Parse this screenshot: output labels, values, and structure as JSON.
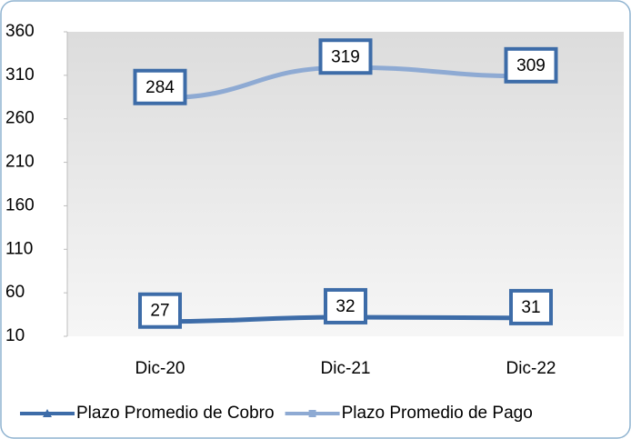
{
  "chart_data": {
    "type": "line",
    "categories": [
      "Dic-20",
      "Dic-21",
      "Dic-22"
    ],
    "series": [
      {
        "name": "Plazo Promedio de Cobro",
        "color": "#3d6ca8",
        "marker": "triangle",
        "values": [
          27,
          32,
          31
        ]
      },
      {
        "name": "Plazo Promedio de Pago",
        "color": "#8eaad3",
        "marker": "square",
        "values": [
          284,
          319,
          309
        ]
      }
    ],
    "ylim": [
      10,
      360
    ],
    "yticks": [
      10,
      60,
      110,
      160,
      210,
      260,
      310,
      360
    ],
    "grid": false,
    "legend": "bottom"
  }
}
